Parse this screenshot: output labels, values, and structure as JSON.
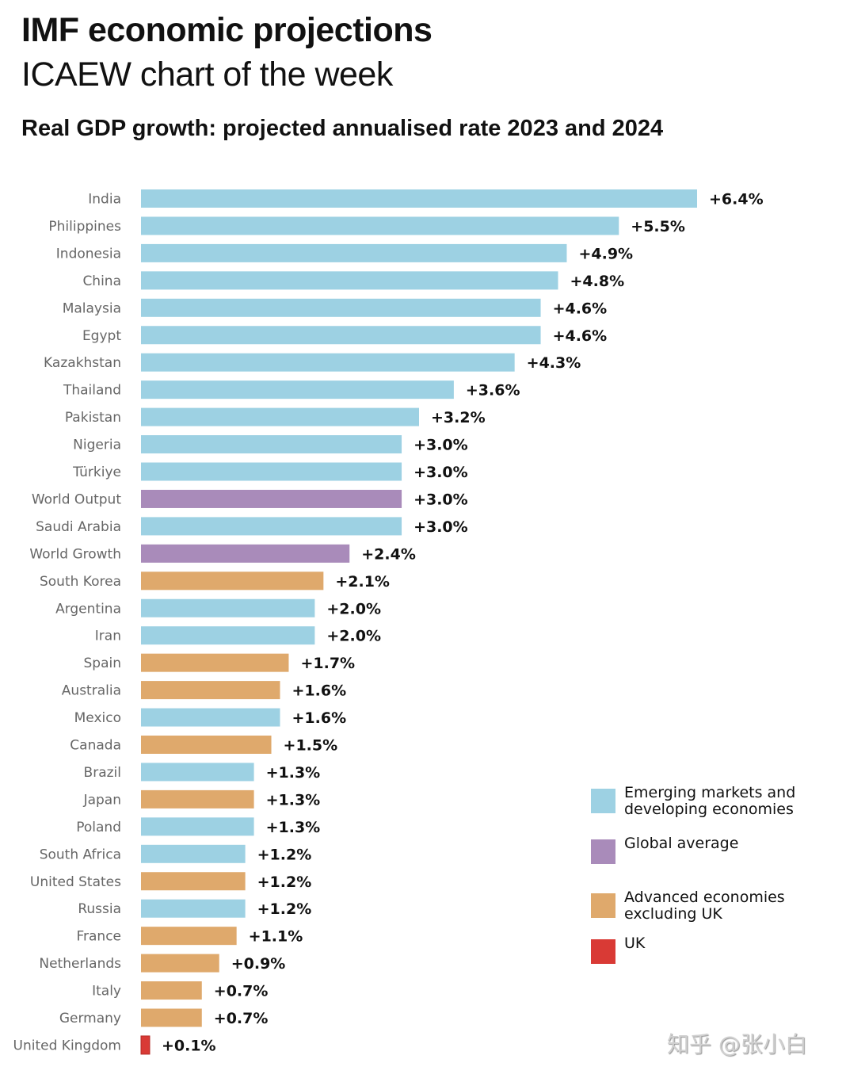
{
  "header": {
    "title": "IMF economic projections",
    "subtitle": "ICAEW chart of the week"
  },
  "colors": {
    "emerging": "#9dd1e3",
    "global": "#a98bba",
    "advanced": "#dfa96c",
    "uk": "#d93a35"
  },
  "chart_data": {
    "type": "bar",
    "orientation": "horizontal",
    "title": "Real GDP growth: projected annualised rate 2023 and 2024",
    "xlabel": "",
    "ylabel": "",
    "unit": "%",
    "xlim": [
      0,
      6.4
    ],
    "grid": false,
    "legend_position": "bottom-right",
    "categories": [
      "India",
      "Philippines",
      "Indonesia",
      "China",
      "Malaysia",
      "Egypt",
      "Kazakhstan",
      "Thailand",
      "Pakistan",
      "Nigeria",
      "Türkiye",
      "World Output",
      "Saudi Arabia",
      "World Growth",
      "South Korea",
      "Argentina",
      "Iran",
      "Spain",
      "Australia",
      "Mexico",
      "Canada",
      "Brazil",
      "Japan",
      "Poland",
      "South Africa",
      "United States",
      "Russia",
      "France",
      "Netherlands",
      "Italy",
      "Germany",
      "United Kingdom"
    ],
    "values": [
      6.4,
      5.5,
      4.9,
      4.8,
      4.6,
      4.6,
      4.3,
      3.6,
      3.2,
      3.0,
      3.0,
      3.0,
      3.0,
      2.4,
      2.1,
      2.0,
      2.0,
      1.7,
      1.6,
      1.6,
      1.5,
      1.3,
      1.3,
      1.3,
      1.2,
      1.2,
      1.2,
      1.1,
      0.9,
      0.7,
      0.7,
      0.1
    ],
    "value_labels": [
      "+6.4%",
      "+5.5%",
      "+4.9%",
      "+4.8%",
      "+4.6%",
      "+4.6%",
      "+4.3%",
      "+3.6%",
      "+3.2%",
      "+3.0%",
      "+3.0%",
      "+3.0%",
      "+3.0%",
      "+2.4%",
      "+2.1%",
      "+2.0%",
      "+2.0%",
      "+1.7%",
      "+1.6%",
      "+1.6%",
      "+1.5%",
      "+1.3%",
      "+1.3%",
      "+1.3%",
      "+1.2%",
      "+1.2%",
      "+1.2%",
      "+1.1%",
      "+0.9%",
      "+0.7%",
      "+0.7%",
      "+0.1%"
    ],
    "groups": [
      "emerging",
      "emerging",
      "emerging",
      "emerging",
      "emerging",
      "emerging",
      "emerging",
      "emerging",
      "emerging",
      "emerging",
      "emerging",
      "global",
      "emerging",
      "global",
      "advanced",
      "emerging",
      "emerging",
      "advanced",
      "advanced",
      "emerging",
      "advanced",
      "emerging",
      "advanced",
      "emerging",
      "emerging",
      "advanced",
      "emerging",
      "advanced",
      "advanced",
      "advanced",
      "advanced",
      "uk"
    ],
    "legend": [
      {
        "key": "emerging",
        "label": "Emerging markets and developing economies",
        "lines": [
          "Emerging markets and",
          "developing economies"
        ]
      },
      {
        "key": "global",
        "label": "Global average",
        "lines": [
          "Global average"
        ]
      },
      {
        "key": "advanced",
        "label": "Advanced economies excluding UK",
        "lines": [
          "Advanced economies",
          "excluding UK"
        ]
      },
      {
        "key": "uk",
        "label": "UK",
        "lines": [
          "UK"
        ]
      }
    ]
  },
  "watermark": "知乎 @张小白"
}
